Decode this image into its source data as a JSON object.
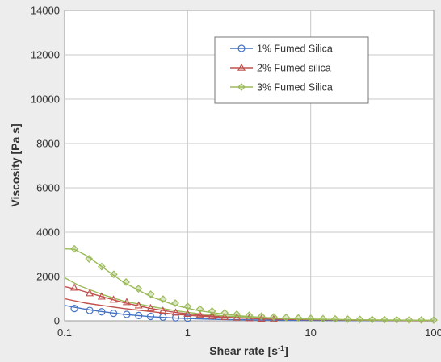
{
  "chart_data": {
    "type": "line",
    "xlabel": "Shear rate [s",
    "xlabel_sup": "-1",
    "xlabel_end": "]",
    "ylabel": "Viscosity [Pa s]",
    "x_scale": "log",
    "xlim": [
      0.1,
      100
    ],
    "ylim": [
      0,
      14000
    ],
    "x_ticks": [
      "0.1",
      "1",
      "10",
      "100"
    ],
    "y_ticks": [
      "0",
      "2000",
      "4000",
      "6000",
      "8000",
      "10000",
      "12000",
      "14000"
    ],
    "grid": true,
    "legend_position": "top-right",
    "series": [
      {
        "name": "1% Fumed Silica",
        "color": "#4472c4",
        "marker": "circle",
        "fit": [
          [
            0.1,
            700
          ],
          [
            0.15,
            520
          ],
          [
            0.2,
            420
          ],
          [
            0.3,
            300
          ],
          [
            0.5,
            190
          ],
          [
            0.8,
            125
          ],
          [
            1.2,
            90
          ],
          [
            2,
            60
          ],
          [
            4,
            35
          ],
          [
            10,
            20
          ],
          [
            30,
            10
          ],
          [
            100,
            5
          ]
        ],
        "x": [
          0.12,
          0.16,
          0.2,
          0.25,
          0.32,
          0.4,
          0.5,
          0.63,
          0.8,
          1.0
        ],
        "values": [
          560,
          470,
          410,
          340,
          290,
          240,
          200,
          170,
          140,
          120
        ]
      },
      {
        "name": "2% Fumed silica",
        "color": "#c0504d",
        "marker": "triangle",
        "fit": [
          [
            0.1,
            1550
          ],
          [
            0.13,
            1400
          ],
          [
            0.2,
            1100
          ],
          [
            0.3,
            830
          ],
          [
            0.5,
            560
          ],
          [
            0.8,
            380
          ],
          [
            1.2,
            270
          ],
          [
            2,
            170
          ],
          [
            3,
            120
          ],
          [
            5,
            80
          ],
          [
            10,
            50
          ],
          [
            30,
            25
          ],
          [
            100,
            10
          ]
        ],
        "fit2": [
          [
            0.1,
            1000
          ],
          [
            0.15,
            800
          ],
          [
            0.2,
            700
          ],
          [
            0.3,
            560
          ],
          [
            0.5,
            420
          ],
          [
            0.8,
            300
          ],
          [
            1.2,
            220
          ],
          [
            2,
            150
          ],
          [
            4,
            90
          ],
          [
            10,
            50
          ],
          [
            30,
            25
          ],
          [
            100,
            10
          ]
        ],
        "x": [
          0.12,
          0.16,
          0.2,
          0.25,
          0.32,
          0.4,
          0.5,
          0.63,
          0.8,
          1.0,
          1.26,
          1.58,
          2.0,
          2.51,
          3.16,
          3.98,
          5.01
        ],
        "values": [
          1500,
          1250,
          1100,
          960,
          850,
          700,
          580,
          460,
          380,
          320,
          270,
          220,
          180,
          150,
          120,
          100,
          80
        ]
      },
      {
        "name": "3% Fumed Silica",
        "color": "#9bbb59",
        "marker": "diamond",
        "fit": [
          [
            0.1,
            3250
          ],
          [
            0.12,
            3230
          ],
          [
            0.15,
            2950
          ],
          [
            0.2,
            2450
          ],
          [
            0.3,
            1750
          ],
          [
            0.5,
            1100
          ],
          [
            0.8,
            700
          ],
          [
            1.2,
            470
          ],
          [
            2,
            300
          ],
          [
            3,
            200
          ],
          [
            5,
            130
          ],
          [
            10,
            80
          ],
          [
            30,
            40
          ],
          [
            100,
            20
          ]
        ],
        "fit2": [
          [
            0.1,
            1950
          ],
          [
            0.13,
            1600
          ],
          [
            0.2,
            1200
          ],
          [
            0.3,
            900
          ],
          [
            0.5,
            650
          ],
          [
            0.8,
            460
          ],
          [
            1.2,
            330
          ],
          [
            2,
            220
          ],
          [
            4,
            130
          ],
          [
            10,
            70
          ],
          [
            30,
            35
          ],
          [
            100,
            20
          ]
        ],
        "x": [
          0.12,
          0.158,
          0.2,
          0.251,
          0.316,
          0.398,
          0.501,
          0.631,
          0.794,
          1.0,
          1.26,
          1.58,
          2.0,
          2.51,
          3.16,
          3.98,
          5.01,
          6.31,
          7.94,
          10.0,
          12.6,
          15.8,
          20.0,
          25.1,
          31.6,
          39.8,
          50.1,
          63.1,
          79.4,
          100
        ],
        "values": [
          3250,
          2800,
          2450,
          2100,
          1750,
          1450,
          1200,
          980,
          800,
          650,
          530,
          440,
          360,
          300,
          250,
          210,
          175,
          150,
          130,
          110,
          95,
          85,
          75,
          65,
          58,
          52,
          47,
          42,
          38,
          35
        ]
      }
    ]
  }
}
